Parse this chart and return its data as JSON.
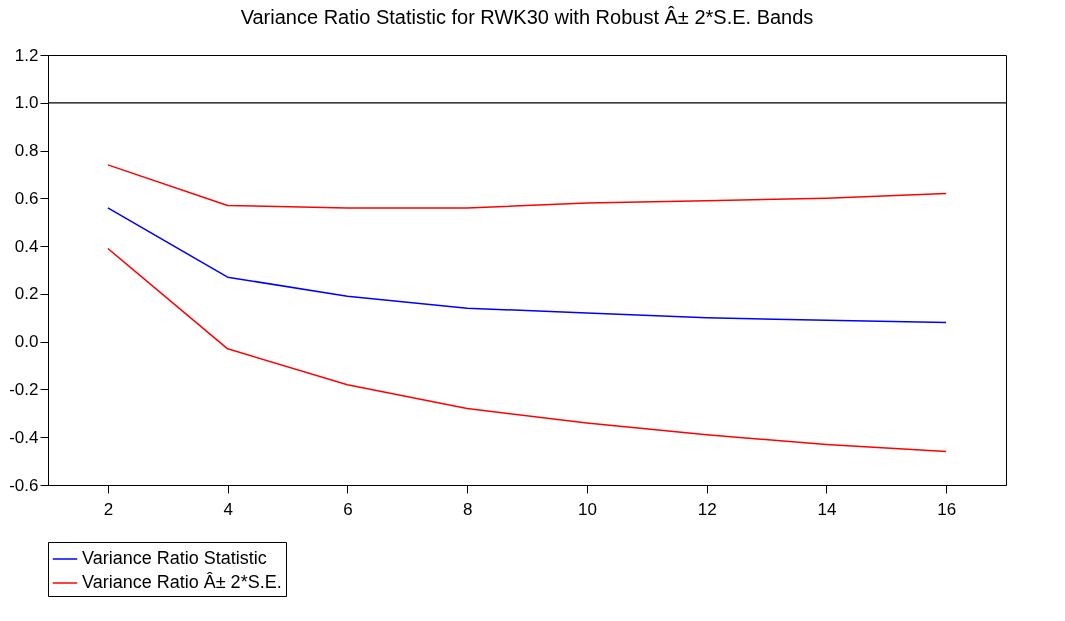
{
  "chart_data": {
    "type": "line",
    "title": "Variance Ratio Statistic for RWK30 with Robust Â± 2*S.E. Bands",
    "categories": [
      "2",
      "4",
      "6",
      "8",
      "10",
      "12",
      "14",
      "16"
    ],
    "series": [
      {
        "name": "Variance Ratio Statistic",
        "color": "#0000ff",
        "values": [
          0.56,
          0.27,
          0.19,
          0.14,
          0.12,
          0.1,
          0.09,
          0.08
        ]
      },
      {
        "name": "Variance Ratio Â± 2*S.E.",
        "color": "#ff0000",
        "values": [
          0.74,
          0.57,
          0.56,
          0.56,
          0.58,
          0.59,
          0.6,
          0.62
        ]
      },
      {
        "color": "#ff0000",
        "values": [
          0.39,
          -0.03,
          -0.18,
          -0.28,
          -0.34,
          -0.39,
          -0.43,
          -0.46
        ]
      }
    ],
    "ylim": [
      -0.6,
      1.2
    ],
    "yticks": [
      {
        "value": -0.6,
        "label": "-0.6"
      },
      {
        "value": -0.4,
        "label": "-0.4"
      },
      {
        "value": -0.2,
        "label": "-0.2"
      },
      {
        "value": 0,
        "label": "0.0"
      },
      {
        "value": 0.2,
        "label": "0.2"
      },
      {
        "value": 0.4,
        "label": "0.4"
      },
      {
        "value": 0.6,
        "label": "0.6"
      },
      {
        "value": 0.8,
        "label": "0.8"
      },
      {
        "value": 1,
        "label": "1.0"
      },
      {
        "value": 1.2,
        "label": "1.2"
      }
    ],
    "ref_lines": [
      {
        "axis": "y",
        "value": 1.0,
        "color": "#000000"
      }
    ],
    "grid": false,
    "legend": "bottom",
    "marker": "none",
    "line_style": "solid"
  }
}
